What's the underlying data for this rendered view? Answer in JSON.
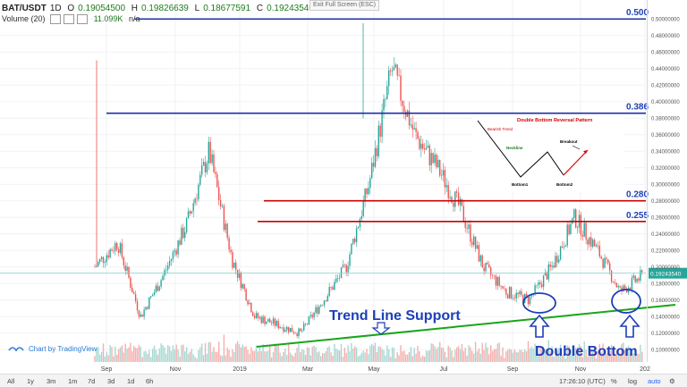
{
  "window": {
    "exit_fullscreen_label": "Exit Full Screen (ESC)"
  },
  "header": {
    "symbol": "BAT/USDT",
    "interval": "1D",
    "open_label": "O",
    "open": "0.19054500",
    "high_label": "H",
    "high": "0.19826639",
    "low_label": "L",
    "low": "0.18677591",
    "close_label": "C",
    "close": "0.19243540",
    "volume_label": "Volume (20)",
    "volume_value": "11.099K",
    "volume_extra": "n/a"
  },
  "watermark": {
    "text": "Chart by TradingView",
    "icon": "tradingview-logo-icon"
  },
  "last_price_tag": "0.19243540",
  "fib_labels": [
    "0.500",
    "0.386",
    "0.280",
    "0.255"
  ],
  "annotations": {
    "trend_line": "Trend Line Support",
    "double_bottom": "Double Bottom",
    "inset_title": "Double Bottom Reversal Pattern",
    "inset_downtrend": "Bearish Trend",
    "inset_neckline": "Neckline",
    "inset_breakout": "Breakout",
    "inset_bottom1": "Bottom1",
    "inset_bottom2": "Bottom2"
  },
  "bottom_bar": {
    "ranges": [
      "All",
      "1y",
      "3m",
      "1m",
      "7d",
      "3d",
      "1d",
      "6h"
    ],
    "time": "17:26:10 (UTC)",
    "percent": "%",
    "log": "log",
    "auto": "auto"
  },
  "colors": {
    "up": "#26a69a",
    "down": "#ef5350",
    "fib_blue": "#1c2fa8",
    "resistance_red": "#cc0000",
    "trend_green": "#19a519",
    "annotation_blue": "#1c3fb8",
    "vol_up": "#a8d8d3",
    "vol_down": "#f4b0ae"
  },
  "chart_data": {
    "type": "candlestick",
    "x_tick_labels": [
      "Sep",
      "Nov",
      "2019",
      "Mar",
      "May",
      "Jul",
      "Sep",
      "Nov",
      "202"
    ],
    "y_tick_labels": [
      "0.50000000",
      "0.48000000",
      "0.46000000",
      "0.44000000",
      "0.42000000",
      "0.40000000",
      "0.38000000",
      "0.36000000",
      "0.34000000",
      "0.32000000",
      "0.30000000",
      "0.28000000",
      "0.26000000",
      "0.24000000",
      "0.22000000",
      "0.20000000",
      "0.18000000",
      "0.16000000",
      "0.14000000",
      "0.12000000",
      "0.10000000"
    ],
    "ylim": [
      0.085,
      0.51
    ],
    "price_path": [
      {
        "x": "2018-08",
        "y": 0.2
      },
      {
        "x": "2018-08-mid",
        "y": 0.23
      },
      {
        "x": "2018-09",
        "y": 0.14
      },
      {
        "x": "2018-10",
        "y": 0.19
      },
      {
        "x": "2018-10-mid",
        "y": 0.25
      },
      {
        "x": "2018-11",
        "y": 0.34
      },
      {
        "x": "2018-11-mid",
        "y": 0.21
      },
      {
        "x": "2018-12",
        "y": 0.14
      },
      {
        "x": "2019-01",
        "y": 0.13
      },
      {
        "x": "2019-02",
        "y": 0.12
      },
      {
        "x": "2019-03",
        "y": 0.16
      },
      {
        "x": "2019-03-mid",
        "y": 0.2
      },
      {
        "x": "2019-04",
        "y": 0.3
      },
      {
        "x": "2019-04-mid",
        "y": 0.44
      },
      {
        "x": "2019-05",
        "y": 0.36
      },
      {
        "x": "2019-06",
        "y": 0.32
      },
      {
        "x": "2019-07",
        "y": 0.27
      },
      {
        "x": "2019-08",
        "y": 0.2
      },
      {
        "x": "2019-09",
        "y": 0.17
      },
      {
        "x": "2019-09-mid",
        "y": 0.16
      },
      {
        "x": "2019-10",
        "y": 0.2
      },
      {
        "x": "2019-11",
        "y": 0.26
      },
      {
        "x": "2019-11-mid",
        "y": 0.22
      },
      {
        "x": "2019-12",
        "y": 0.17
      },
      {
        "x": "2020-01",
        "y": 0.19
      }
    ],
    "fib_levels": [
      0.5,
      0.386,
      0.28,
      0.255
    ],
    "trend_line": {
      "from": {
        "x": "2019-01",
        "y": 0.105
      },
      "to": {
        "x": "2020-01",
        "y": 0.155
      }
    },
    "grid": true,
    "legend": "none"
  }
}
